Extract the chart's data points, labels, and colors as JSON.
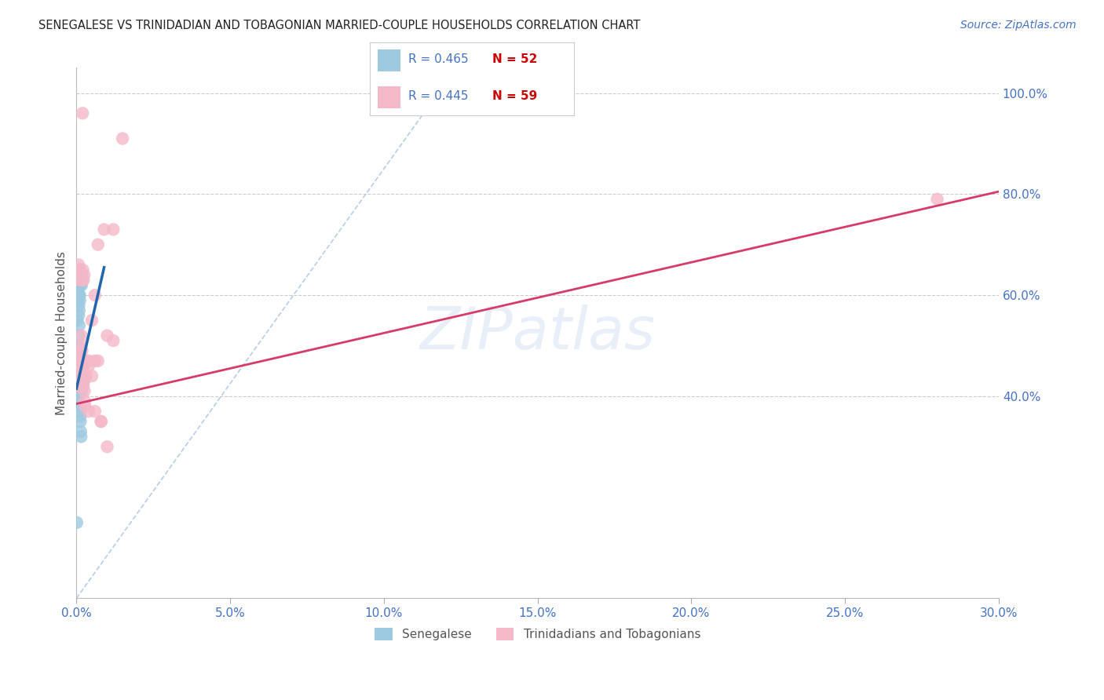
{
  "title": "SENEGALESE VS TRINIDADIAN AND TOBAGONIAN MARRIED-COUPLE HOUSEHOLDS CORRELATION CHART",
  "source": "Source: ZipAtlas.com",
  "ylabel": "Married-couple Households",
  "watermark": "ZIPatlas",
  "blue_color": "#9ecae1",
  "pink_color": "#f4b8c8",
  "blue_line_color": "#2166ac",
  "pink_line_color": "#d63b6a",
  "dashed_line_color": "#b0c8e8",
  "background_color": "#ffffff",
  "grid_color": "#cccccc",
  "title_color": "#222222",
  "axis_label_color": "#4472c4",
  "legend_r_color": "#4472c4",
  "legend_n_color": "#cc0000",
  "R_blue": "0.465",
  "N_blue": "52",
  "R_pink": "0.445",
  "N_pink": "59",
  "senegalese_x": [
    0.0002,
    0.0003,
    0.0004,
    0.0004,
    0.0005,
    0.0005,
    0.0006,
    0.0006,
    0.0007,
    0.0007,
    0.0008,
    0.0008,
    0.0009,
    0.0009,
    0.001,
    0.001,
    0.0011,
    0.0011,
    0.0012,
    0.0012,
    0.0013,
    0.0013,
    0.0014,
    0.0015,
    0.0016,
    0.0017,
    0.0018,
    0.0019,
    0.002,
    0.0021,
    0.0003,
    0.0004,
    0.0005,
    0.0006,
    0.0007,
    0.0008,
    0.0009,
    0.001,
    0.0011,
    0.0012,
    0.0013,
    0.0014,
    0.0015,
    0.0004,
    0.0005,
    0.0007,
    0.0009,
    0.0013,
    0.0017,
    0.002,
    0.0008,
    0.0001
  ],
  "senegalese_y": [
    0.47,
    0.55,
    0.61,
    0.63,
    0.59,
    0.47,
    0.65,
    0.6,
    0.56,
    0.63,
    0.58,
    0.62,
    0.65,
    0.57,
    0.6,
    0.6,
    0.64,
    0.59,
    0.65,
    0.62,
    0.48,
    0.44,
    0.43,
    0.44,
    0.42,
    0.41,
    0.43,
    0.42,
    0.44,
    0.44,
    0.46,
    0.44,
    0.45,
    0.43,
    0.42,
    0.41,
    0.4,
    0.38,
    0.37,
    0.36,
    0.35,
    0.33,
    0.32,
    0.48,
    0.5,
    0.52,
    0.54,
    0.64,
    0.62,
    0.63,
    0.4,
    0.15
  ],
  "trinidadian_x": [
    0.0003,
    0.0005,
    0.0006,
    0.0007,
    0.0008,
    0.0009,
    0.001,
    0.0011,
    0.0012,
    0.0013,
    0.0014,
    0.0015,
    0.0016,
    0.0017,
    0.0018,
    0.0019,
    0.002,
    0.0021,
    0.0022,
    0.0023,
    0.0024,
    0.0025,
    0.0026,
    0.0027,
    0.0028,
    0.0005,
    0.0007,
    0.0009,
    0.0011,
    0.0013,
    0.0015,
    0.0017,
    0.0019,
    0.0021,
    0.0023,
    0.0025,
    0.003,
    0.004,
    0.005,
    0.006,
    0.005,
    0.003,
    0.007,
    0.008,
    0.004,
    0.006,
    0.008,
    0.01,
    0.012,
    0.006,
    0.007,
    0.009,
    0.012,
    0.015,
    0.003,
    0.002,
    0.004,
    0.01,
    0.28
  ],
  "trinidadian_y": [
    0.47,
    0.45,
    0.46,
    0.44,
    0.43,
    0.42,
    0.44,
    0.46,
    0.47,
    0.45,
    0.48,
    0.5,
    0.52,
    0.47,
    0.49,
    0.46,
    0.44,
    0.43,
    0.42,
    0.44,
    0.46,
    0.43,
    0.41,
    0.39,
    0.38,
    0.65,
    0.66,
    0.65,
    0.63,
    0.63,
    0.64,
    0.64,
    0.63,
    0.65,
    0.63,
    0.64,
    0.47,
    0.47,
    0.44,
    0.6,
    0.55,
    0.44,
    0.47,
    0.35,
    0.37,
    0.37,
    0.35,
    0.52,
    0.51,
    0.47,
    0.7,
    0.73,
    0.73,
    0.91,
    0.44,
    0.96,
    0.46,
    0.3,
    0.79
  ],
  "xlim": [
    0.0,
    0.3
  ],
  "ylim": [
    0.0,
    1.05
  ],
  "xticks": [
    0.0,
    0.05,
    0.1,
    0.15,
    0.2,
    0.25,
    0.3
  ],
  "yticks_right": [
    0.4,
    0.6,
    0.8,
    1.0
  ],
  "grid_yticks": [
    0.4,
    0.6,
    0.8,
    1.0
  ],
  "blue_line_x": [
    0.0,
    0.009
  ],
  "blue_line_y": [
    0.415,
    0.655
  ],
  "pink_line_x": [
    0.0,
    0.3
  ],
  "pink_line_y": [
    0.385,
    0.805
  ],
  "dashed_line_x": [
    0.0,
    0.12
  ],
  "dashed_line_y": [
    0.0,
    1.02
  ]
}
